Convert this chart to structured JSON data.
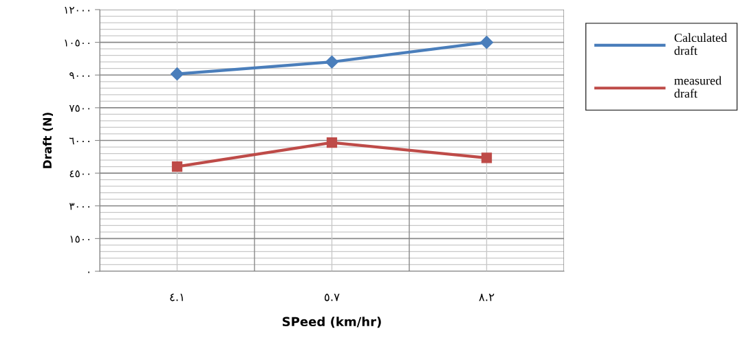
{
  "chart_data": {
    "type": "line",
    "xlabel": "SPeed (km/hr)",
    "ylabel": "Draft (N)",
    "categories": [
      "٤.١",
      "٥.٧",
      "٨.٢"
    ],
    "series": [
      {
        "name": "Calculated\ndraft",
        "color": "#4a7ebb",
        "values": [
          9050,
          9600,
          10500
        ],
        "marker": "diamond"
      },
      {
        "name": "measured\ndraft",
        "color": "#be4b48",
        "values": [
          4800,
          5900,
          5200
        ],
        "marker": "square"
      }
    ],
    "ylim": [
      0,
      12000
    ],
    "yticks": [
      {
        "value": 0,
        "label": "٠"
      },
      {
        "value": 300,
        "label": null
      },
      {
        "value": 600,
        "label": null
      },
      {
        "value": 900,
        "label": null
      },
      {
        "value": 1200,
        "label": null
      },
      {
        "value": 1500,
        "label": "١٥٠٠"
      },
      {
        "value": 1800,
        "label": null
      },
      {
        "value": 2100,
        "label": null
      },
      {
        "value": 2400,
        "label": null
      },
      {
        "value": 2700,
        "label": null
      },
      {
        "value": 3000,
        "label": "٣٠٠٠"
      },
      {
        "value": 3300,
        "label": null
      },
      {
        "value": 3600,
        "label": null
      },
      {
        "value": 3900,
        "label": null
      },
      {
        "value": 4200,
        "label": null
      },
      {
        "value": 4500,
        "label": "٤٥٠٠"
      },
      {
        "value": 4800,
        "label": null
      },
      {
        "value": 5100,
        "label": null
      },
      {
        "value": 5400,
        "label": null
      },
      {
        "value": 5700,
        "label": null
      },
      {
        "value": 6000,
        "label": "٦٠٠٠"
      },
      {
        "value": 6300,
        "label": null
      },
      {
        "value": 6600,
        "label": null
      },
      {
        "value": 6900,
        "label": null
      },
      {
        "value": 7200,
        "label": null
      },
      {
        "value": 7500,
        "label": "٧٥٠٠"
      },
      {
        "value": 7800,
        "label": null
      },
      {
        "value": 8100,
        "label": null
      },
      {
        "value": 8400,
        "label": null
      },
      {
        "value": 8700,
        "label": null
      },
      {
        "value": 9000,
        "label": "٩٠٠٠"
      },
      {
        "value": 9300,
        "label": null
      },
      {
        "value": 9600,
        "label": null
      },
      {
        "value": 9900,
        "label": null
      },
      {
        "value": 10200,
        "label": null
      },
      {
        "value": 10500,
        "label": "١٠٥٠٠"
      },
      {
        "value": 10800,
        "label": null
      },
      {
        "value": 11100,
        "label": null
      },
      {
        "value": 11400,
        "label": null
      },
      {
        "value": 11700,
        "label": null
      },
      {
        "value": 12000,
        "label": "١٢٠٠٠"
      }
    ],
    "grid": true,
    "legend": "top right",
    "line_style": "solid"
  }
}
